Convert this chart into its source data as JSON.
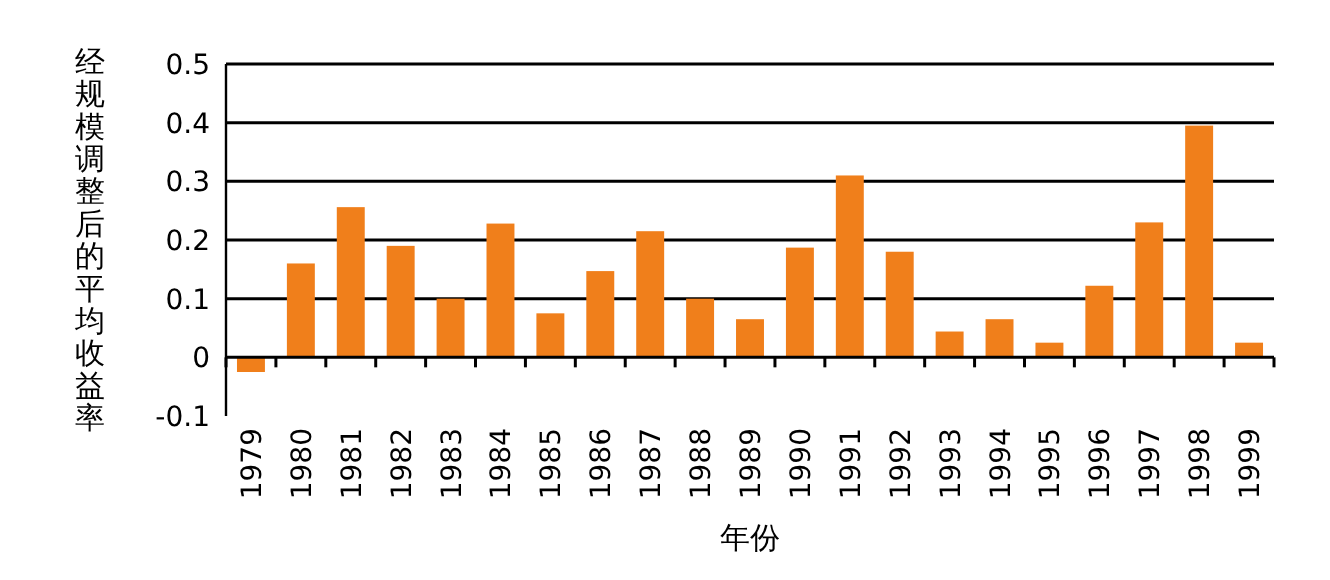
{
  "chart_data": {
    "type": "bar",
    "ylabel": "经规模调整后的平均收益率",
    "xlabel": "年份",
    "categories": [
      "1979",
      "1980",
      "1981",
      "1982",
      "1983",
      "1984",
      "1985",
      "1986",
      "1987",
      "1988",
      "1989",
      "1990",
      "1991",
      "1992",
      "1993",
      "1994",
      "1995",
      "1996",
      "1997",
      "1998",
      "1999"
    ],
    "values": [
      -0.025,
      0.16,
      0.256,
      0.19,
      0.1,
      0.228,
      0.075,
      0.147,
      0.215,
      0.1,
      0.065,
      0.187,
      0.31,
      0.18,
      0.044,
      0.065,
      0.025,
      0.122,
      0.23,
      0.395,
      0.025
    ],
    "color": "#f07f1b",
    "ylim": [
      -0.1,
      0.5
    ],
    "yticks": [
      -0.1,
      0,
      0.1,
      0.2,
      0.3,
      0.4,
      0.5
    ],
    "grid": "y"
  }
}
